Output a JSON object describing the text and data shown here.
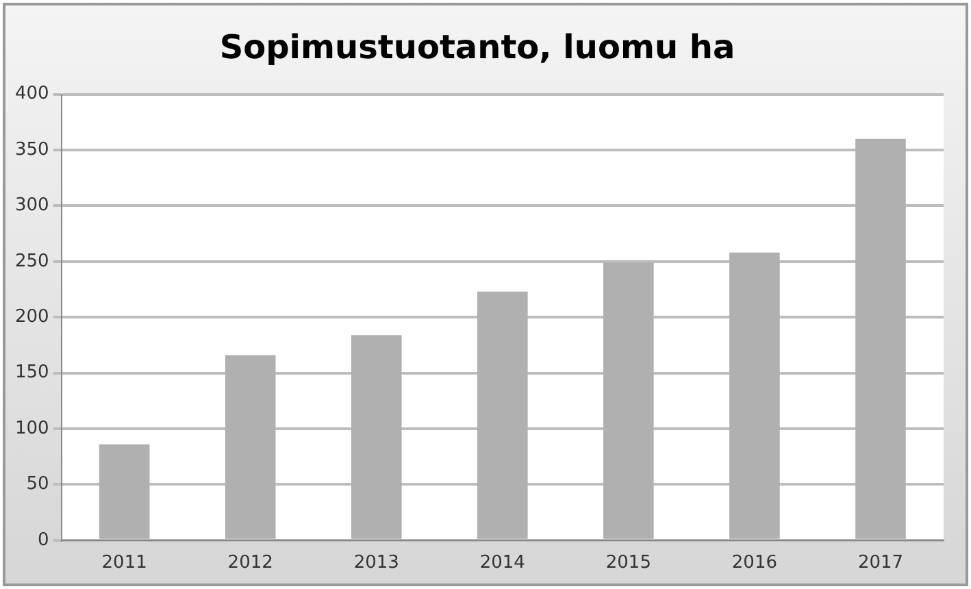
{
  "chart_data": {
    "type": "bar",
    "title": "Sopimustuotanto, luomu ha",
    "categories": [
      "2011",
      "2012",
      "2013",
      "2014",
      "2015",
      "2016",
      "2017"
    ],
    "values": [
      86,
      166,
      184,
      223,
      249,
      258,
      360
    ],
    "color": "#b0b0b0",
    "ylim": [
      0,
      400
    ],
    "yticks": [
      0,
      50,
      100,
      150,
      200,
      250,
      300,
      350,
      400
    ],
    "grid": "y"
  }
}
